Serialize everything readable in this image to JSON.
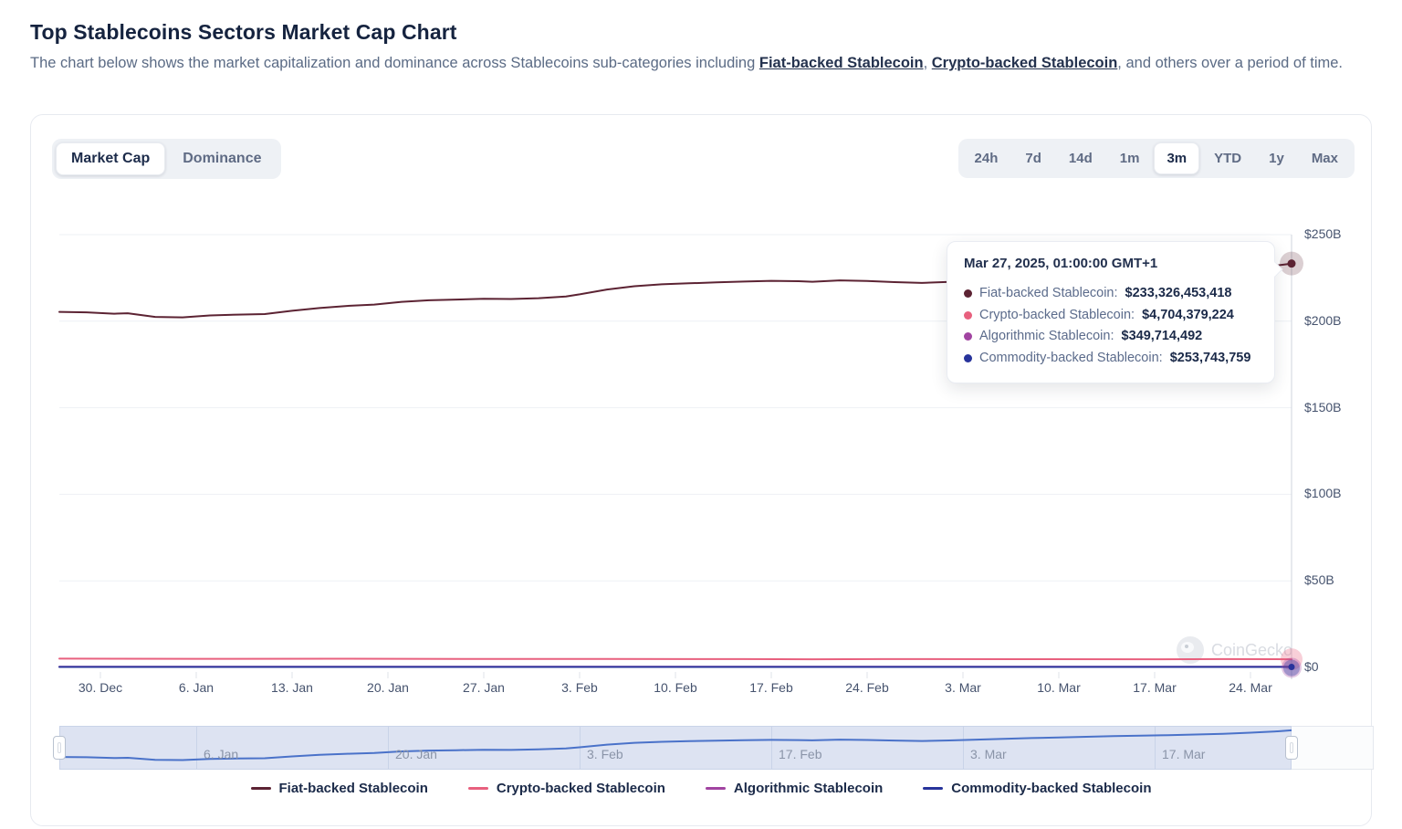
{
  "page": {
    "title": "Top Stablecoins Sectors Market Cap Chart",
    "description": {
      "before": "The chart below shows the market capitalization and dominance across Stablecoins sub-categories including ",
      "link1": "Fiat-backed Stablecoin",
      "separator": ", ",
      "link2": "Crypto-backed Stablecoin",
      "after": ", and others over a period of time."
    }
  },
  "toolbar": {
    "view_tabs": [
      {
        "label": "Market Cap",
        "active": true
      },
      {
        "label": "Dominance",
        "active": false
      }
    ],
    "range_buttons": [
      {
        "label": "24h",
        "active": false
      },
      {
        "label": "7d",
        "active": false
      },
      {
        "label": "14d",
        "active": false
      },
      {
        "label": "1m",
        "active": false
      },
      {
        "label": "3m",
        "active": true
      },
      {
        "label": "YTD",
        "active": false
      },
      {
        "label": "1y",
        "active": false
      },
      {
        "label": "Max",
        "active": false
      }
    ]
  },
  "tooltip": {
    "timestamp": "Mar 27, 2025, 01:00:00 GMT+1",
    "rows": [
      {
        "label": "Fiat-backed Stablecoin",
        "value": "$233,326,453,418",
        "color": "#5c2333"
      },
      {
        "label": "Crypto-backed Stablecoin",
        "value": "$4,704,379,224",
        "color": "#e8607e"
      },
      {
        "label": "Algorithmic Stablecoin",
        "value": "$349,714,492",
        "color": "#a144a1"
      },
      {
        "label": "Commodity-backed Stablecoin",
        "value": "$253,743,759",
        "color": "#27339b"
      }
    ]
  },
  "watermark": "CoinGecko",
  "chart_data": {
    "type": "line",
    "title": "Top Stablecoins Sectors Market Cap Chart",
    "unit": "USD billions",
    "ylim_b": [
      0,
      250
    ],
    "x_window": {
      "start": "Dec 27, 2024",
      "end": "Mar 27, 2025",
      "days": 90
    },
    "y_ticks": [
      {
        "value_b": 250,
        "label": "$250B"
      },
      {
        "value_b": 200,
        "label": "$200B"
      },
      {
        "value_b": 150,
        "label": "$150B"
      },
      {
        "value_b": 100,
        "label": "$100B"
      },
      {
        "value_b": 50,
        "label": "$50B"
      },
      {
        "value_b": 0,
        "label": "$0"
      }
    ],
    "x_ticks": [
      {
        "day": 3,
        "label": "30. Dec"
      },
      {
        "day": 10,
        "label": "6. Jan"
      },
      {
        "day": 17,
        "label": "13. Jan"
      },
      {
        "day": 24,
        "label": "20. Jan"
      },
      {
        "day": 31,
        "label": "27. Jan"
      },
      {
        "day": 38,
        "label": "3. Feb"
      },
      {
        "day": 45,
        "label": "10. Feb"
      },
      {
        "day": 52,
        "label": "17. Feb"
      },
      {
        "day": 59,
        "label": "24. Feb"
      },
      {
        "day": 66,
        "label": "3. Mar"
      },
      {
        "day": 73,
        "label": "10. Mar"
      },
      {
        "day": 80,
        "label": "17. Mar"
      },
      {
        "day": 87,
        "label": "24. Mar"
      }
    ],
    "series": [
      {
        "name": "Fiat-backed Stablecoin",
        "color": "#5c2333",
        "latest_value": 233326453418,
        "points_day_valueB": [
          [
            0,
            205.4
          ],
          [
            2,
            205.1
          ],
          [
            4,
            204.3
          ],
          [
            5,
            204.6
          ],
          [
            7,
            202.5
          ],
          [
            9,
            202.2
          ],
          [
            11,
            203.3
          ],
          [
            13,
            203.8
          ],
          [
            15,
            204.1
          ],
          [
            17,
            206.0
          ],
          [
            19,
            207.6
          ],
          [
            21,
            208.8
          ],
          [
            23,
            209.6
          ],
          [
            25,
            211.2
          ],
          [
            27,
            212.1
          ],
          [
            29,
            212.5
          ],
          [
            31,
            213.0
          ],
          [
            33,
            212.8
          ],
          [
            35,
            213.3
          ],
          [
            37,
            214.3
          ],
          [
            38,
            215.5
          ],
          [
            40,
            218.3
          ],
          [
            42,
            220.2
          ],
          [
            44,
            221.3
          ],
          [
            46,
            221.9
          ],
          [
            48,
            222.4
          ],
          [
            50,
            222.9
          ],
          [
            52,
            223.3
          ],
          [
            54,
            223.1
          ],
          [
            55,
            222.8
          ],
          [
            57,
            223.6
          ],
          [
            59,
            223.2
          ],
          [
            61,
            222.6
          ],
          [
            63,
            222.1
          ],
          [
            65,
            222.7
          ],
          [
            67,
            223.6
          ],
          [
            69,
            224.4
          ],
          [
            71,
            225.2
          ],
          [
            73,
            225.9
          ],
          [
            75,
            226.5
          ],
          [
            77,
            227.2
          ],
          [
            79,
            227.8
          ],
          [
            81,
            228.3
          ],
          [
            83,
            228.9
          ],
          [
            85,
            229.7
          ],
          [
            87,
            230.8
          ],
          [
            88,
            231.5
          ],
          [
            89,
            232.3
          ],
          [
            90,
            233.3
          ]
        ]
      },
      {
        "name": "Crypto-backed Stablecoin",
        "color": "#e8607e",
        "latest_value": 4704379224,
        "points_day_valueB": [
          [
            0,
            5.05
          ],
          [
            10,
            4.98
          ],
          [
            20,
            5.0
          ],
          [
            30,
            4.92
          ],
          [
            40,
            4.85
          ],
          [
            50,
            4.8
          ],
          [
            55,
            4.72
          ],
          [
            60,
            4.78
          ],
          [
            70,
            4.75
          ],
          [
            80,
            4.72
          ],
          [
            85,
            4.78
          ],
          [
            90,
            4.7
          ]
        ]
      },
      {
        "name": "Algorithmic Stablecoin",
        "color": "#a144a1",
        "latest_value": 349714492,
        "points_day_valueB": [
          [
            0,
            0.42
          ],
          [
            15,
            0.41
          ],
          [
            30,
            0.4
          ],
          [
            45,
            0.38
          ],
          [
            60,
            0.37
          ],
          [
            75,
            0.36
          ],
          [
            90,
            0.35
          ]
        ]
      },
      {
        "name": "Commodity-backed Stablecoin",
        "color": "#27339b",
        "latest_value": 253743759,
        "points_day_valueB": [
          [
            0,
            0.27
          ],
          [
            20,
            0.27
          ],
          [
            40,
            0.26
          ],
          [
            60,
            0.26
          ],
          [
            80,
            0.255
          ],
          [
            90,
            0.254
          ]
        ]
      }
    ],
    "navigator": {
      "series_ref": "Fiat-backed Stablecoin",
      "line_color": "#4a72c9",
      "x_ticks": [
        {
          "day": 10,
          "label": "6. Jan"
        },
        {
          "day": 24,
          "label": "20. Jan"
        },
        {
          "day": 38,
          "label": "3. Feb"
        },
        {
          "day": 52,
          "label": "17. Feb"
        },
        {
          "day": 66,
          "label": "3. Mar"
        },
        {
          "day": 80,
          "label": "17. Mar"
        }
      ]
    },
    "legend_position": "bottom",
    "grid": "horizontal-only"
  },
  "legend": [
    {
      "label": "Fiat-backed Stablecoin",
      "color": "#5c2333"
    },
    {
      "label": "Crypto-backed Stablecoin",
      "color": "#e8607e"
    },
    {
      "label": "Algorithmic Stablecoin",
      "color": "#a144a1"
    },
    {
      "label": "Commodity-backed Stablecoin",
      "color": "#27339b"
    }
  ]
}
